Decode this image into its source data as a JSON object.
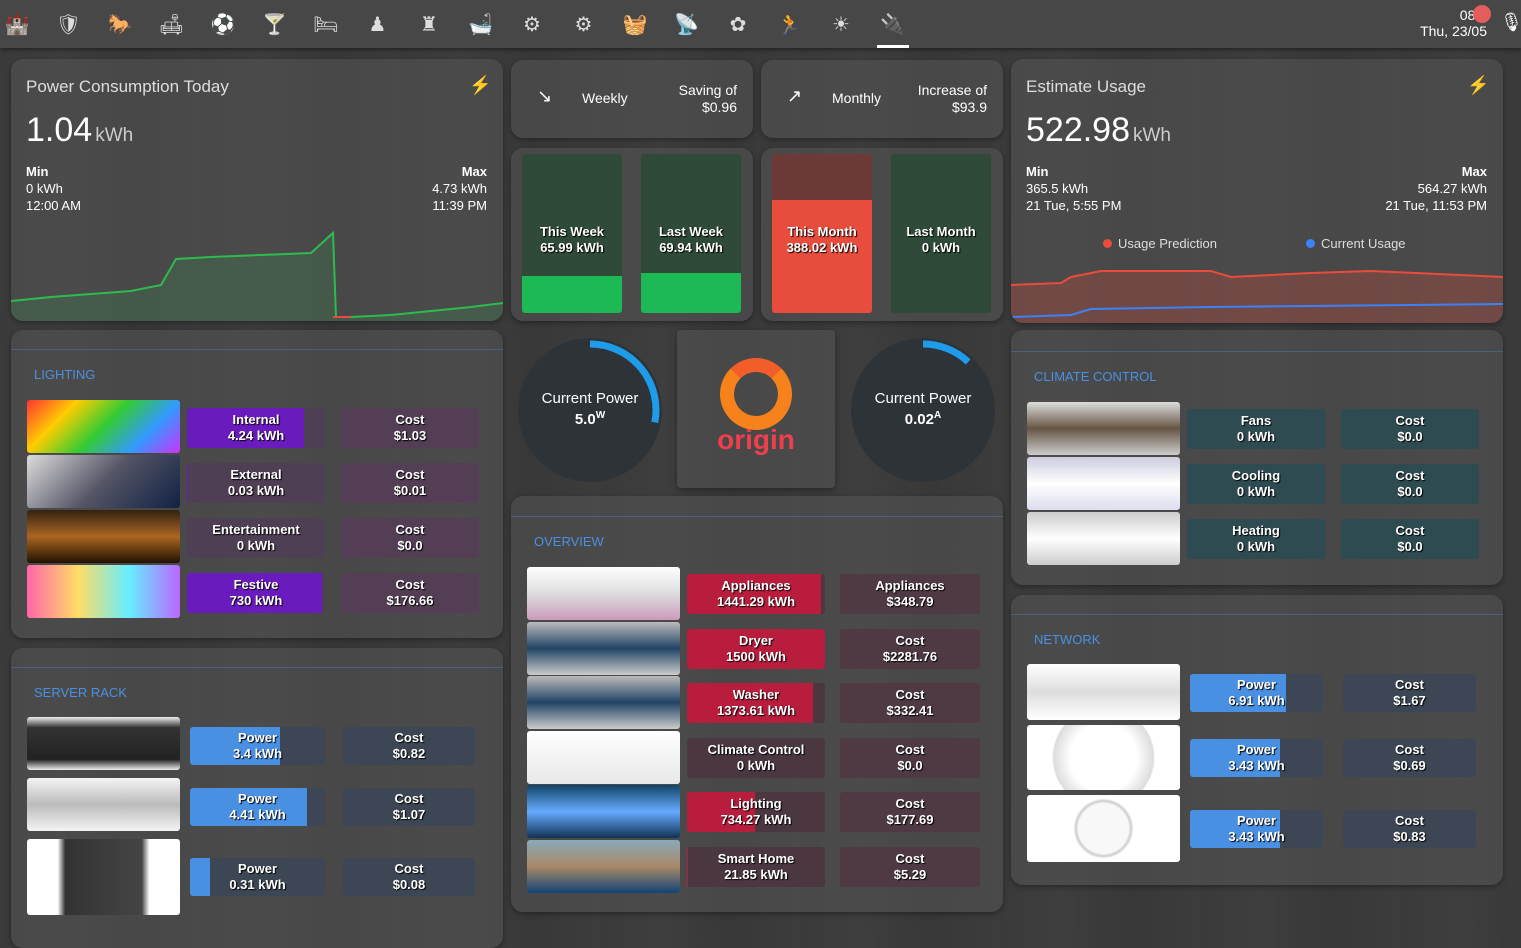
{
  "topbar": {
    "tabs": [
      "castle-icon",
      "shield-home-icon",
      "rocking-horse-icon",
      "sofa-icon",
      "soccer-ball-icon",
      "glass-icon",
      "bed-icon",
      "chess-pawn-icon",
      "chess-rook-icon",
      "bathtub-icon",
      "cog-icon",
      "cogs-icon",
      "washing-machine-icon",
      "wifi-tower-icon",
      "flower-icon",
      "run-icon",
      "sun-icon",
      "power-plug-icon"
    ],
    "active_tab": 17,
    "time": "08:0",
    "date": "Thu, 23/05",
    "mic": "microphone-icon"
  },
  "power_today": {
    "title": "Power Consumption Today",
    "value": "1.04",
    "unit": "kWh",
    "min_label": "Min",
    "min_value": "0 kWh",
    "min_time": "12:00 AM",
    "max_label": "Max",
    "max_value": "4.73 kWh",
    "max_time": "11:39 PM",
    "color": "#2dbb4e"
  },
  "weekly": {
    "label": "Weekly",
    "sub": "Saving of",
    "amount": "$0.96",
    "icon": "trending-down-icon"
  },
  "monthly": {
    "label": "Monthly",
    "sub": "Increase of",
    "amount": "$93.9",
    "icon": "trending-up-icon"
  },
  "week_bars": [
    {
      "label": "This Week",
      "value": "65.99 kWh",
      "fill": 0.23,
      "color": "#1db954"
    },
    {
      "label": "Last Week",
      "value": "69.94 kWh",
      "fill": 0.25,
      "color": "#1db954"
    }
  ],
  "month_bars": [
    {
      "label": "This Month",
      "value": "388.02 kWh",
      "fill": 0.71,
      "color": "#e74c3c",
      "track": "#6b3a36"
    },
    {
      "label": "Last Month",
      "value": "0 kWh",
      "fill": 0,
      "color": "#1db954",
      "track": "#2f4a38"
    }
  ],
  "gauges": [
    {
      "label": "Current Power",
      "value": "5.0",
      "unit": "W",
      "fraction": 0.28
    },
    {
      "label": "Current Power",
      "value": "0.02",
      "unit": "A",
      "fraction": 0.12
    }
  ],
  "logo": {
    "text": "origin"
  },
  "estimate": {
    "title": "Estimate Usage",
    "value": "522.98",
    "unit": "kWh",
    "min_label": "Min",
    "min_value": "365.5 kWh",
    "min_time": "21 Tue, 5:55 PM",
    "max_label": "Max",
    "max_value": "564.27 kWh",
    "max_time": "21 Tue, 11:53 PM",
    "legend": [
      {
        "name": "Usage Prediction",
        "color": "#e74c3c"
      },
      {
        "name": "Current Usage",
        "color": "#3b82f6"
      }
    ]
  },
  "lighting": {
    "title": "LIGHTING",
    "rows": [
      {
        "name": "Internal",
        "value": "4.24 kWh",
        "fill": 0.85,
        "cost_label": "Cost",
        "cost": "$1.03"
      },
      {
        "name": "External",
        "value": "0.03 kWh",
        "fill": 0.01,
        "cost_label": "Cost",
        "cost": "$0.01"
      },
      {
        "name": "Entertainment",
        "value": "0 kWh",
        "fill": 0,
        "cost_label": "Cost",
        "cost": "$0.0"
      },
      {
        "name": "Festive",
        "value": "730 kWh",
        "fill": 0.98,
        "cost_label": "Cost",
        "cost": "$176.66"
      }
    ],
    "color": "#6a1bbd"
  },
  "server": {
    "title": "SERVER RACK",
    "rows": [
      {
        "name": "Power",
        "value": "3.4 kWh",
        "fill": 0.67,
        "cost_label": "Cost",
        "cost": "$0.82"
      },
      {
        "name": "Power",
        "value": "4.41 kWh",
        "fill": 0.87,
        "cost_label": "Cost",
        "cost": "$1.07"
      },
      {
        "name": "Power",
        "value": "0.31 kWh",
        "fill": 0.15,
        "cost_label": "Cost",
        "cost": "$0.08"
      }
    ],
    "color": "#4a90e2"
  },
  "overview": {
    "title": "OVERVIEW",
    "rows": [
      {
        "name": "Appliances",
        "value": "1441.29 kWh",
        "fill": 0.97,
        "cost_label": "Appliances",
        "cost": "$348.79"
      },
      {
        "name": "Dryer",
        "value": "1500 kWh",
        "fill": 1,
        "cost_label": "Cost",
        "cost": "$2281.76"
      },
      {
        "name": "Washer",
        "value": "1373.61 kWh",
        "fill": 0.91,
        "cost_label": "Cost",
        "cost": "$332.41"
      },
      {
        "name": "Climate Control",
        "value": "0 kWh",
        "fill": 0,
        "cost_label": "Cost",
        "cost": "$0.0"
      },
      {
        "name": "Lighting",
        "value": "734.27 kWh",
        "fill": 0.49,
        "cost_label": "Cost",
        "cost": "$177.69"
      },
      {
        "name": "Smart Home",
        "value": "21.85 kWh",
        "fill": 0.01,
        "cost_label": "Cost",
        "cost": "$5.29"
      }
    ],
    "color": "#b81d3e"
  },
  "climate": {
    "title": "CLIMATE CONTROL",
    "rows": [
      {
        "name": "Fans",
        "value": "0 kWh",
        "fill": 0,
        "cost_label": "Cost",
        "cost": "$0.0"
      },
      {
        "name": "Cooling",
        "value": "0 kWh",
        "fill": 0,
        "cost_label": "Cost",
        "cost": "$0.0"
      },
      {
        "name": "Heating",
        "value": "0 kWh",
        "fill": 0,
        "cost_label": "Cost",
        "cost": "$0.0"
      }
    ],
    "color": "#2a6f80"
  },
  "network": {
    "title": "NETWORK",
    "rows": [
      {
        "name": "Power",
        "value": "6.91 kWh",
        "fill": 0.72,
        "cost_label": "Cost",
        "cost": "$1.67"
      },
      {
        "name": "Power",
        "value": "3.43 kWh",
        "fill": 0.68,
        "cost_label": "Cost",
        "cost": "$0.69"
      },
      {
        "name": "Power",
        "value": "3.43 kWh",
        "fill": 0.68,
        "cost_label": "Cost",
        "cost": "$0.83"
      }
    ],
    "color": "#4a90e2"
  }
}
